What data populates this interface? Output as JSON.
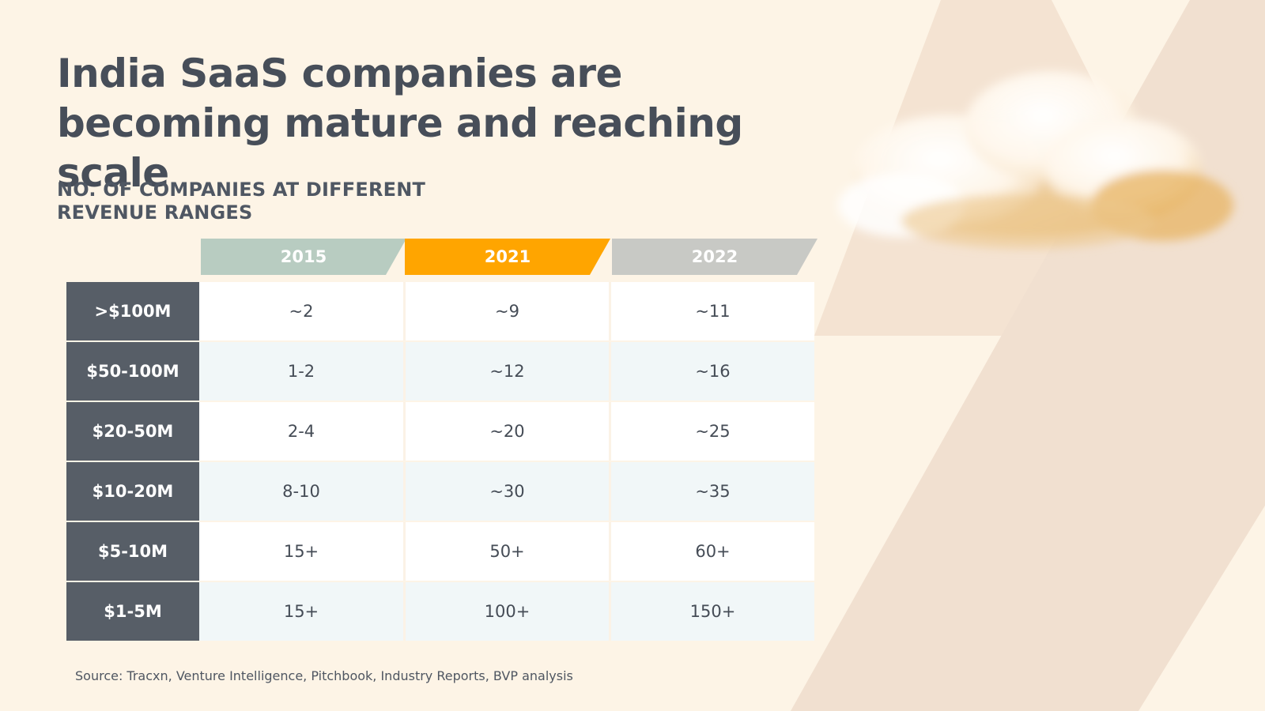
{
  "title": "India SaaS companies are becoming mature and reaching scale",
  "subtitle": "NO. OF COMPANIES AT DIFFERENT REVENUE RANGES",
  "source": "Source: Tracxn, Venture Intelligence, Pitchbook, Industry Reports, BVP analysis",
  "colors": {
    "background": "#fdf4e6",
    "header_2015": "#b8ccc1",
    "header_2021": "#ffa500",
    "header_2022": "#c8c9c5",
    "row_label_bg": "#575e67"
  },
  "chart_data": {
    "type": "table",
    "columns": [
      "2015",
      "2021",
      "2022"
    ],
    "rows": [
      {
        "label": ">$100M",
        "values": [
          "~2",
          "~9",
          "~11"
        ]
      },
      {
        "label": "$50-100M",
        "values": [
          "1-2",
          "~12",
          "~16"
        ]
      },
      {
        "label": "$20-50M",
        "values": [
          "2-4",
          "~20",
          "~25"
        ]
      },
      {
        "label": "$10-20M",
        "values": [
          "8-10",
          "~30",
          "~35"
        ]
      },
      {
        "label": "$5-10M",
        "values": [
          "15+",
          "50+",
          "60+"
        ]
      },
      {
        "label": "$1-5M",
        "values": [
          "15+",
          "100+",
          "150+"
        ]
      }
    ]
  }
}
